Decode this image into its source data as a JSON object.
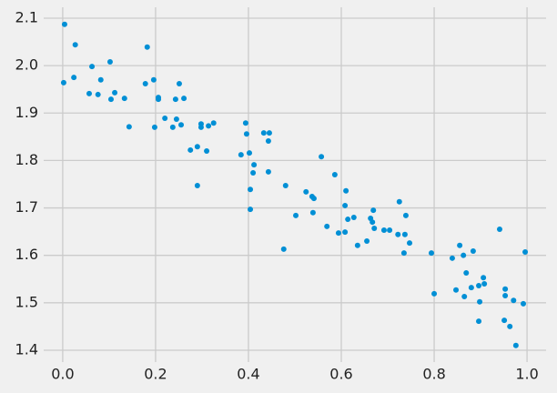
{
  "chart_data": {
    "type": "scatter",
    "color": "#008fd5",
    "grid": true,
    "xlim": [
      -0.041,
      1.041
    ],
    "ylim": [
      1.375,
      2.123
    ],
    "xticks": [
      {
        "value": 0,
        "label": "0.0"
      },
      0.2,
      0.4,
      0.6,
      0.8,
      {
        "value": 1,
        "label": "1.0"
      }
    ],
    "yticks": [
      1.4,
      1.5,
      1.6,
      1.7,
      1.8,
      1.9,
      {
        "value": 2,
        "label": "2.0"
      },
      2.1
    ],
    "x": [
      0.004,
      0.002,
      0.027,
      0.024,
      0.063,
      0.057,
      0.076,
      0.082,
      0.102,
      0.104,
      0.112,
      0.133,
      0.143,
      0.182,
      0.178,
      0.196,
      0.198,
      0.206,
      0.206,
      0.22,
      0.237,
      0.243,
      0.245,
      0.251,
      0.255,
      0.261,
      0.275,
      0.29,
      0.29,
      0.298,
      0.298,
      0.31,
      0.314,
      0.325,
      0.384,
      0.394,
      0.396,
      0.402,
      0.404,
      0.404,
      0.412,
      0.41,
      0.433,
      0.445,
      0.443,
      0.443,
      0.476,
      0.48,
      0.502,
      0.524,
      0.537,
      0.541,
      0.539,
      0.557,
      0.569,
      0.586,
      0.594,
      0.608,
      0.608,
      0.61,
      0.614,
      0.627,
      0.635,
      0.655,
      0.663,
      0.667,
      0.669,
      0.671,
      0.692,
      0.704,
      0.722,
      0.725,
      0.737,
      0.735,
      0.739,
      0.747,
      0.794,
      0.8,
      0.839,
      0.847,
      0.855,
      0.863,
      0.865,
      0.869,
      0.88,
      0.884,
      0.896,
      0.898,
      0.896,
      0.906,
      0.908,
      0.941,
      0.951,
      0.953,
      0.953,
      0.963,
      0.971,
      0.976,
      0.992,
      0.996
    ],
    "values": [
      2.087,
      1.964,
      2.044,
      1.975,
      1.998,
      1.941,
      1.939,
      1.97,
      2.008,
      1.929,
      1.943,
      1.931,
      1.871,
      2.039,
      1.962,
      1.97,
      1.87,
      1.933,
      1.929,
      1.889,
      1.87,
      1.929,
      1.887,
      1.962,
      1.875,
      1.931,
      1.822,
      1.829,
      1.747,
      1.877,
      1.87,
      1.82,
      1.873,
      1.879,
      1.812,
      1.879,
      1.856,
      1.816,
      1.739,
      1.697,
      1.791,
      1.774,
      1.858,
      1.858,
      1.841,
      1.776,
      1.613,
      1.747,
      1.684,
      1.734,
      1.724,
      1.72,
      1.69,
      1.808,
      1.661,
      1.77,
      1.647,
      1.649,
      1.705,
      1.736,
      1.676,
      1.68,
      1.621,
      1.63,
      1.678,
      1.67,
      1.695,
      1.657,
      1.653,
      1.653,
      1.644,
      1.713,
      1.644,
      1.605,
      1.684,
      1.626,
      1.605,
      1.519,
      1.594,
      1.527,
      1.621,
      1.6,
      1.513,
      1.563,
      1.532,
      1.609,
      1.536,
      1.502,
      1.461,
      1.553,
      1.54,
      1.655,
      1.463,
      1.529,
      1.515,
      1.45,
      1.505,
      1.41,
      1.498,
      1.607
    ]
  }
}
